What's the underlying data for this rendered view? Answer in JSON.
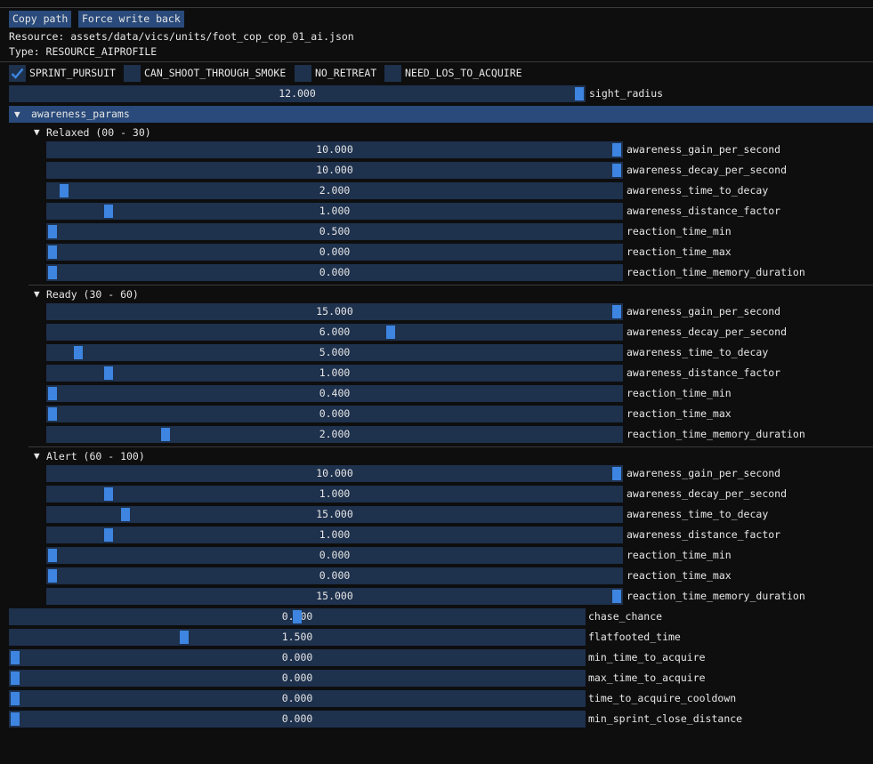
{
  "toolbar": {
    "copy_path_label": "Copy path",
    "force_write_back_label": "Force write back"
  },
  "info": {
    "resource": "Resource: assets/data/vics/units/foot_cop_cop_01_ai.json",
    "type": "Type: RESOURCE_AIPROFILE"
  },
  "flags": [
    {
      "label": "SPRINT_PURSUIT",
      "checked": true
    },
    {
      "label": "CAN_SHOOT_THROUGH_SMOKE",
      "checked": false
    },
    {
      "label": "NO_RETREAT",
      "checked": false
    },
    {
      "label": "NEED_LOS_TO_ACQUIRE",
      "checked": false
    }
  ],
  "sight_radius": {
    "label": "sight_radius",
    "value": "12.000",
    "fill": 1.0
  },
  "awareness_params": {
    "label": "awareness_params",
    "groups": [
      {
        "title": "Relaxed (00 - 30)",
        "params": [
          {
            "label": "awareness_gain_per_second",
            "value": "10.000",
            "fill": 1.0
          },
          {
            "label": "awareness_decay_per_second",
            "value": "10.000",
            "fill": 1.0
          },
          {
            "label": "awareness_time_to_decay",
            "value": "2.000",
            "fill": 0.02
          },
          {
            "label": "awareness_distance_factor",
            "value": "1.000",
            "fill": 0.1
          },
          {
            "label": "reaction_time_min",
            "value": "0.500",
            "fill": 0.0
          },
          {
            "label": "reaction_time_max",
            "value": "0.000",
            "fill": 0.0
          },
          {
            "label": "reaction_time_memory_duration",
            "value": "0.000",
            "fill": 0.0
          }
        ]
      },
      {
        "title": "Ready   (30 - 60)",
        "params": [
          {
            "label": "awareness_gain_per_second",
            "value": "15.000",
            "fill": 1.0
          },
          {
            "label": "awareness_decay_per_second",
            "value": "6.000",
            "fill": 0.6
          },
          {
            "label": "awareness_time_to_decay",
            "value": "5.000",
            "fill": 0.045
          },
          {
            "label": "awareness_distance_factor",
            "value": "1.000",
            "fill": 0.1
          },
          {
            "label": "reaction_time_min",
            "value": "0.400",
            "fill": 0.0
          },
          {
            "label": "reaction_time_max",
            "value": "0.000",
            "fill": 0.0
          },
          {
            "label": "reaction_time_memory_duration",
            "value": "2.000",
            "fill": 0.2
          }
        ]
      },
      {
        "title": "Alert   (60 - 100)",
        "params": [
          {
            "label": "awareness_gain_per_second",
            "value": "10.000",
            "fill": 1.0
          },
          {
            "label": "awareness_decay_per_second",
            "value": "1.000",
            "fill": 0.1
          },
          {
            "label": "awareness_time_to_decay",
            "value": "15.000",
            "fill": 0.13
          },
          {
            "label": "awareness_distance_factor",
            "value": "1.000",
            "fill": 0.1
          },
          {
            "label": "reaction_time_min",
            "value": "0.000",
            "fill": 0.0
          },
          {
            "label": "reaction_time_max",
            "value": "0.000",
            "fill": 0.0
          },
          {
            "label": "reaction_time_memory_duration",
            "value": "15.000",
            "fill": 1.0
          }
        ]
      }
    ]
  },
  "bottom_params": [
    {
      "label": "chase_chance",
      "value": "0.500",
      "fill": 0.5
    },
    {
      "label": "flatfooted_time",
      "value": "1.500",
      "fill": 0.3
    },
    {
      "label": "min_time_to_acquire",
      "value": "0.000",
      "fill": 0.0
    },
    {
      "label": "max_time_to_acquire",
      "value": "0.000",
      "fill": 0.0
    },
    {
      "label": "time_to_acquire_cooldown",
      "value": "0.000",
      "fill": 0.0
    },
    {
      "label": "min_sprint_close_distance",
      "value": "0.000",
      "fill": 0.0
    }
  ],
  "colors": {
    "background": "#0e0e0e",
    "frame": "#1e314d",
    "grab": "#3d85e0",
    "header": "#294a7a",
    "text": "#e6e6e6"
  }
}
